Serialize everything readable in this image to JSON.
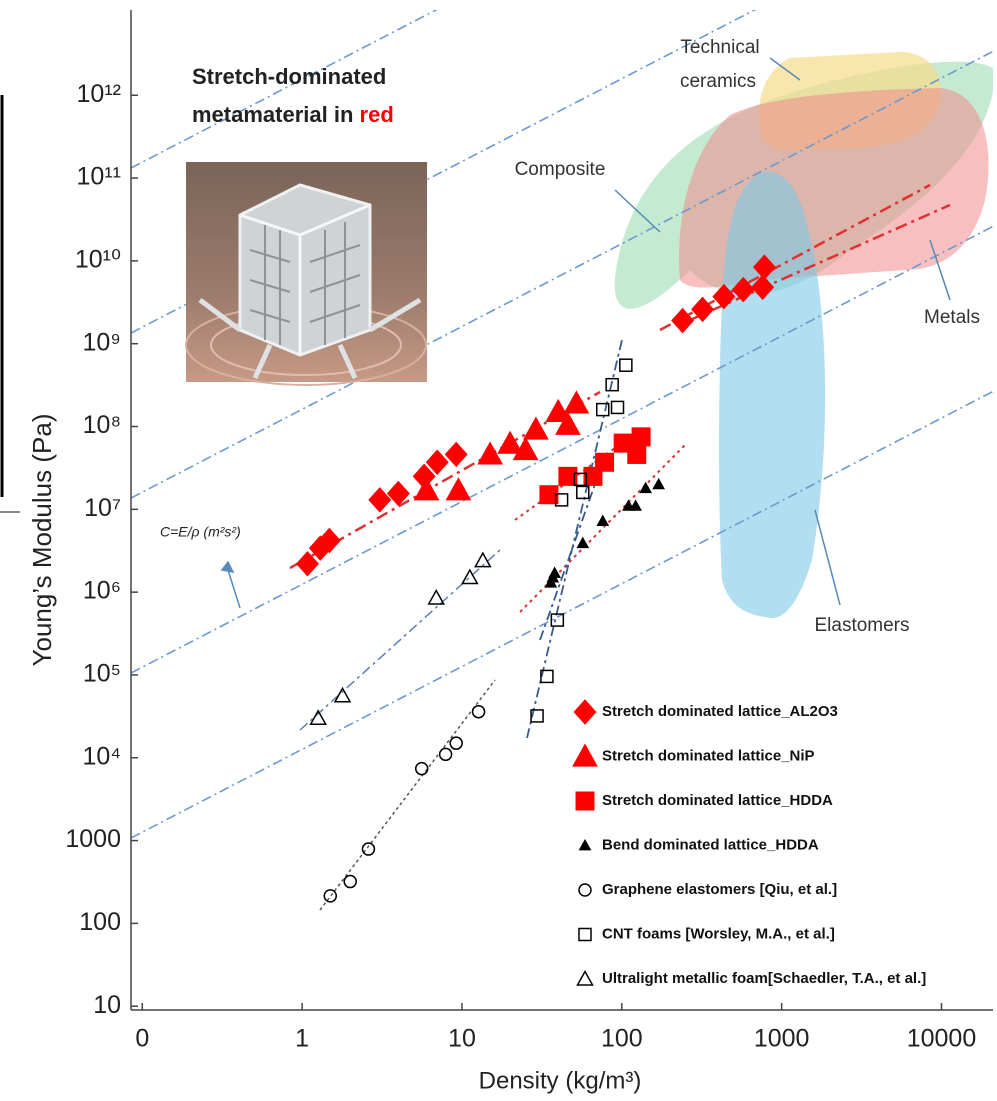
{
  "chart_data": {
    "type": "scatter",
    "xscale": "log",
    "yscale": "log",
    "xlabel": "Density (kg/m³)",
    "ylabel": "Young’s Modulus (Pa)",
    "xlim": [
      0.085,
      21000
    ],
    "ylim": [
      9,
      10700000000000.0
    ],
    "xticks": [
      {
        "value": 0.1,
        "label": "0"
      },
      1,
      10,
      100,
      1000,
      10000
    ],
    "yticks": [
      10,
      100,
      1000,
      {
        "value": 10000,
        "label": "10⁴"
      },
      {
        "value": 100000,
        "label": "10⁵"
      },
      {
        "value": 1000000,
        "label": "10⁶"
      },
      {
        "value": 10000000,
        "label": "10⁷"
      },
      {
        "value": 100000000,
        "label": "10⁸"
      },
      {
        "value": 1000000000,
        "label": "10⁹"
      },
      {
        "value": 10000000000,
        "label": "10¹⁰"
      },
      {
        "value": 100000000000,
        "label": "10¹¹"
      },
      {
        "value": 1000000000000,
        "label": "10¹²"
      }
    ],
    "legend": "lower right",
    "inset_title": {
      "lines": [
        "Stretch-dominated",
        "metamaterial in"
      ],
      "highlight": "red"
    },
    "annotations": {
      "ceramics": [
        "Technical",
        "ceramics"
      ],
      "composite": "Composite",
      "metals": "Metals",
      "elastomers": "Elastomers",
      "guide": "C=E/ρ (m²s²)"
    },
    "series": [
      {
        "name": "Stretch dominated lattice_AL2O3",
        "color": "#ff0000",
        "marker": "diamond",
        "filled": true,
        "x": [
          1.08,
          1.3,
          1.48,
          3.06,
          4.0,
          5.8,
          7.0,
          9.2,
          240,
          320,
          435,
          575,
          780,
          760
        ],
        "values": [
          2200000,
          3400000,
          4200000,
          13000000,
          15500000,
          25000000,
          37000000,
          46000000,
          1900000000,
          2600000000,
          3700000000,
          4500000000,
          8400000000,
          4800000000
        ]
      },
      {
        "name": "Stretch dominated lattice_NiP",
        "color": "#ff0000",
        "marker": "triangle",
        "filled": true,
        "x": [
          6.0,
          9.5,
          15,
          20,
          25,
          29,
          40,
          46,
          52
        ],
        "values": [
          17000000,
          17000000,
          46000000,
          62000000,
          52000000,
          92000000,
          150000000,
          105000000,
          190000000
        ]
      },
      {
        "name": "Stretch dominated lattice_HDDA",
        "color": "#ff0000",
        "marker": "square",
        "filled": true,
        "x": [
          35,
          46,
          66,
          78,
          102,
          132,
          124
        ],
        "values": [
          15000000,
          25000000,
          25000000,
          37000000,
          63000000,
          75000000,
          46000000
        ]
      },
      {
        "name": "Bend dominated lattice_HDDA",
        "color": "#000000",
        "marker": "triangle-small",
        "filled": true,
        "x": [
          36,
          37,
          38,
          57,
          76,
          110,
          122,
          141,
          170
        ],
        "values": [
          1300000,
          1500000,
          1700000,
          3900000,
          7200000,
          11000000,
          11000000,
          18000000,
          20000000
        ]
      },
      {
        "name": "Graphene elastomers [Qiu, et al.]",
        "color": "#000000",
        "marker": "circle",
        "filled": false,
        "x": [
          1.5,
          2.0,
          2.6,
          5.6,
          7.9,
          9.2,
          12.7
        ],
        "values": [
          215,
          320,
          790,
          7400,
          11000,
          15000,
          36000
        ]
      },
      {
        "name": "CNT foams [Worsley, M.A., et al.]",
        "color": "#000000",
        "marker": "square",
        "filled": false,
        "x": [
          29.5,
          34,
          39.5,
          42,
          55,
          57,
          76,
          87,
          94,
          106
        ],
        "values": [
          32000,
          96000,
          460000,
          13000000,
          23000000,
          16000000,
          160000000,
          320000000,
          170000000,
          550000000
        ]
      },
      {
        "name": "Ultralight metallic foam[Schaedler, T.A., et al.]",
        "color": "#000000",
        "marker": "triangle",
        "filled": false,
        "x": [
          1.26,
          1.79,
          6.9,
          11.2,
          13.5
        ],
        "values": [
          30000,
          56000,
          850000,
          1500000,
          2400000
        ]
      }
    ]
  }
}
